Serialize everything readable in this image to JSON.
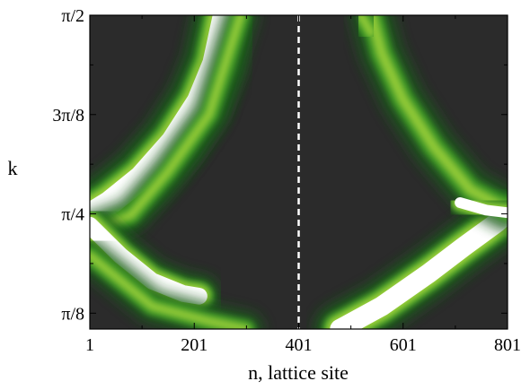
{
  "chart_data": {
    "type": "heatmap",
    "title": "",
    "xlabel": "n, lattice site",
    "ylabel": "k",
    "xlim": [
      1,
      801
    ],
    "ylim": [
      0.33,
      1.5708
    ],
    "x_ticks": [
      {
        "value": 1,
        "label": "1"
      },
      {
        "value": 201,
        "label": "201"
      },
      {
        "value": 401,
        "label": "401"
      },
      {
        "value": 601,
        "label": "601"
      },
      {
        "value": 801,
        "label": "801"
      }
    ],
    "y_ticks": [
      {
        "value": 0.3927,
        "label": "π/8"
      },
      {
        "value": 0.7854,
        "label": "π/4"
      },
      {
        "value": 1.1781,
        "label": "3π/8"
      },
      {
        "value": 1.5708,
        "label": "π/2"
      }
    ],
    "reference_line": {
      "x": 401,
      "style": "dashed",
      "color": "#ffffff"
    },
    "colormap": [
      "#2b2b2b",
      "#1e5a1e",
      "#3c9a28",
      "#9ed23a",
      "#fffff0",
      "#ffffff"
    ],
    "features": [
      {
        "name": "left-branch",
        "points": [
          [
            1,
            0.78
          ],
          [
            40,
            0.83
          ],
          [
            100,
            0.93
          ],
          [
            160,
            1.07
          ],
          [
            210,
            1.23
          ],
          [
            240,
            1.38
          ],
          [
            260,
            1.57
          ]
        ],
        "intensity": 1.0,
        "width": 32
      },
      {
        "name": "left-branch-glow",
        "points": [
          [
            1,
            0.72
          ],
          [
            80,
            0.78
          ],
          [
            150,
            0.95
          ],
          [
            230,
            1.18
          ],
          [
            290,
            1.57
          ]
        ],
        "intensity": 0.55,
        "width": 18
      },
      {
        "name": "left-lower-lobe",
        "points": [
          [
            1,
            0.74
          ],
          [
            60,
            0.62
          ],
          [
            120,
            0.52
          ],
          [
            180,
            0.47
          ],
          [
            210,
            0.46
          ]
        ],
        "intensity": 1.0,
        "width": 22
      },
      {
        "name": "left-lower-lobe-glow",
        "points": [
          [
            1,
            0.62
          ],
          [
            120,
            0.42
          ],
          [
            230,
            0.36
          ],
          [
            300,
            0.33
          ]
        ],
        "intensity": 0.45,
        "width": 18
      },
      {
        "name": "right-lower-branch",
        "points": [
          [
            480,
            0.33
          ],
          [
            560,
            0.42
          ],
          [
            650,
            0.55
          ],
          [
            720,
            0.66
          ],
          [
            780,
            0.75
          ],
          [
            801,
            0.79
          ]
        ],
        "intensity": 1.0,
        "width": 26
      },
      {
        "name": "right-upper-arc",
        "points": [
          [
            540,
            1.57
          ],
          [
            560,
            1.42
          ],
          [
            600,
            1.24
          ],
          [
            660,
            1.05
          ],
          [
            730,
            0.88
          ],
          [
            801,
            0.8
          ]
        ],
        "intensity": 0.55,
        "width": 22
      },
      {
        "name": "right-bright-spot",
        "points": [
          [
            710,
            0.83
          ],
          [
            760,
            0.8
          ],
          [
            801,
            0.79
          ]
        ],
        "intensity": 1.0,
        "width": 14
      },
      {
        "name": "right-top-spot",
        "points": [
          [
            520,
            1.57
          ],
          [
            540,
            1.5
          ]
        ],
        "intensity": 0.8,
        "width": 18
      }
    ]
  }
}
